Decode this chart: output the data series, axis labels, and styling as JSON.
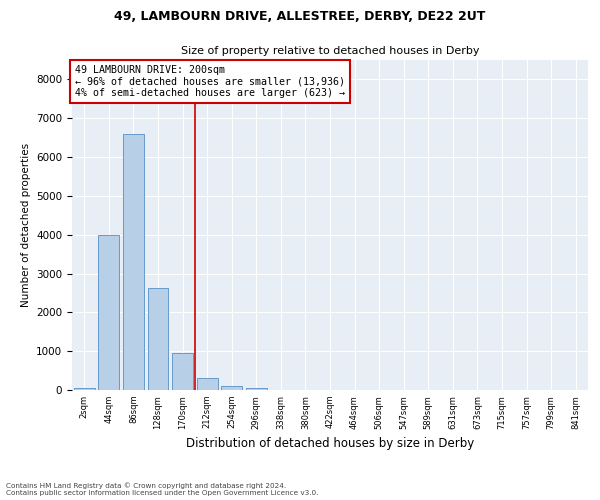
{
  "title1": "49, LAMBOURN DRIVE, ALLESTREE, DERBY, DE22 2UT",
  "title2": "Size of property relative to detached houses in Derby",
  "xlabel": "Distribution of detached houses by size in Derby",
  "ylabel": "Number of detached properties",
  "categories": [
    "2sqm",
    "44sqm",
    "86sqm",
    "128sqm",
    "170sqm",
    "212sqm",
    "254sqm",
    "296sqm",
    "338sqm",
    "380sqm",
    "422sqm",
    "464sqm",
    "506sqm",
    "547sqm",
    "589sqm",
    "631sqm",
    "673sqm",
    "715sqm",
    "757sqm",
    "799sqm",
    "841sqm"
  ],
  "values": [
    50,
    4000,
    6600,
    2620,
    950,
    320,
    110,
    55,
    0,
    0,
    0,
    0,
    0,
    0,
    0,
    0,
    0,
    0,
    0,
    0,
    0
  ],
  "bar_color": "#b8cfe8",
  "bar_edge_color": "#6699cc",
  "vline_color": "#cc0000",
  "annotation_text": "49 LAMBOURN DRIVE: 200sqm\n← 96% of detached houses are smaller (13,936)\n4% of semi-detached houses are larger (623) →",
  "annotation_box_color": "#ffffff",
  "annotation_box_edge": "#cc0000",
  "ylim": [
    0,
    8500
  ],
  "yticks": [
    0,
    1000,
    2000,
    3000,
    4000,
    5000,
    6000,
    7000,
    8000
  ],
  "background_color": "#e8eef5",
  "footer1": "Contains HM Land Registry data © Crown copyright and database right 2024.",
  "footer2": "Contains public sector information licensed under the Open Government Licence v3.0."
}
